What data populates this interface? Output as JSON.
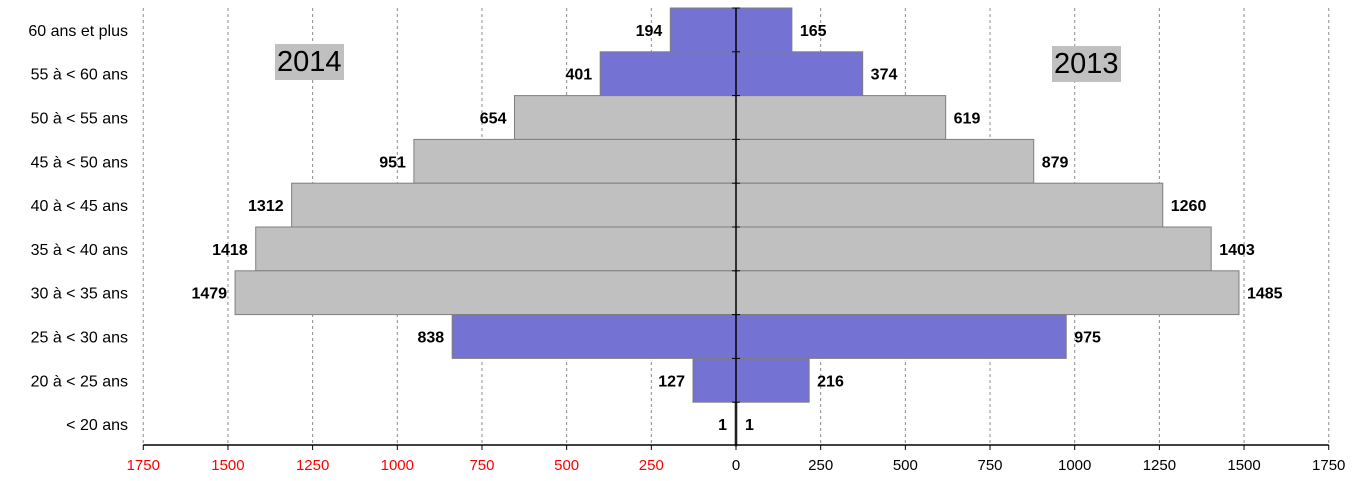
{
  "chart_data": {
    "type": "bar",
    "orientation": "horizontal",
    "layout": "population-pyramid",
    "categories": [
      "60 ans et plus",
      "55 à < 60 ans",
      "50 à < 55 ans",
      "45 à < 50 ans",
      "40 à < 45 ans",
      "35 à < 40 ans",
      "30 à < 35 ans",
      "25 à < 30 ans",
      "20 à < 25 ans",
      "< 20 ans"
    ],
    "series": [
      {
        "name": "2014",
        "side": "left",
        "values": [
          194,
          401,
          654,
          951,
          1312,
          1418,
          1479,
          838,
          127,
          1
        ]
      },
      {
        "name": "2013",
        "side": "right",
        "values": [
          165,
          374,
          619,
          879,
          1260,
          1403,
          1485,
          975,
          216,
          1
        ]
      }
    ],
    "highlighted_categories": [
      "60 ans et plus",
      "55 à < 60 ans",
      "25 à < 30 ans",
      "20 à < 25 ans"
    ],
    "colors": {
      "highlight": "#7472d2",
      "normal": "#c0c0c0",
      "left_tick_labels": "#ff0000",
      "right_tick_labels": "#000000",
      "year_label_bg": "#c0c0c0"
    },
    "x_ticks_left": [
      "1750",
      "1500",
      "1250",
      "1000",
      "750",
      "500",
      "250"
    ],
    "x_ticks_right": [
      "0",
      "250",
      "500",
      "750",
      "1000",
      "1250",
      "1500",
      "1750"
    ],
    "xlim": [
      -1750,
      1750
    ],
    "grid": "vertical dashed",
    "title": "",
    "xlabel": "",
    "ylabel": ""
  },
  "labels": {
    "left_year": "2014",
    "right_year": "2013"
  }
}
